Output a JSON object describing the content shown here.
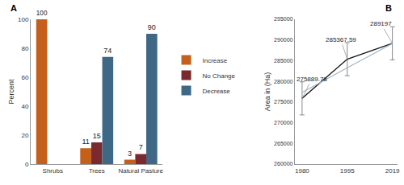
{
  "chart_data": [
    {
      "type": "bar",
      "title": "A",
      "y_label": "Percent",
      "categories": [
        "Shrubs",
        "Trees",
        "Natural Pasture"
      ],
      "series": [
        {
          "name": "Increase",
          "color": "#c5601c",
          "values": [
            100,
            11,
            3
          ]
        },
        {
          "name": "No Change",
          "color": "#7a2a2e",
          "values": [
            null,
            15,
            7
          ]
        },
        {
          "name": "Decrease",
          "color": "#3f6786",
          "values": [
            null,
            74,
            90
          ]
        }
      ],
      "ylim": [
        0,
        100
      ],
      "yticks": [
        0,
        20,
        40,
        60,
        80,
        100
      ],
      "grid": false,
      "legend": "right",
      "data_labels": true
    },
    {
      "type": "line",
      "title": "B",
      "y_label": "Area in (Ha)",
      "categories": [
        "1980",
        "1995",
        "2019"
      ],
      "series": [
        {
          "color": "#1a1a1a",
          "values": [
            275889.78,
            285367.59,
            289197
          ],
          "errors": [
            4000,
            4000,
            4000
          ],
          "marker": "none",
          "line_style": "solid"
        },
        {
          "color": "#9fb6c9",
          "values": [
            277300,
            283300,
            289100
          ],
          "marker": "none",
          "line_style": "solid"
        }
      ],
      "ylim": [
        260000,
        295000
      ],
      "yticks": [
        260000,
        265000,
        270000,
        275000,
        280000,
        285000,
        290000,
        295000
      ],
      "grid": false,
      "data_labels": true
    }
  ]
}
